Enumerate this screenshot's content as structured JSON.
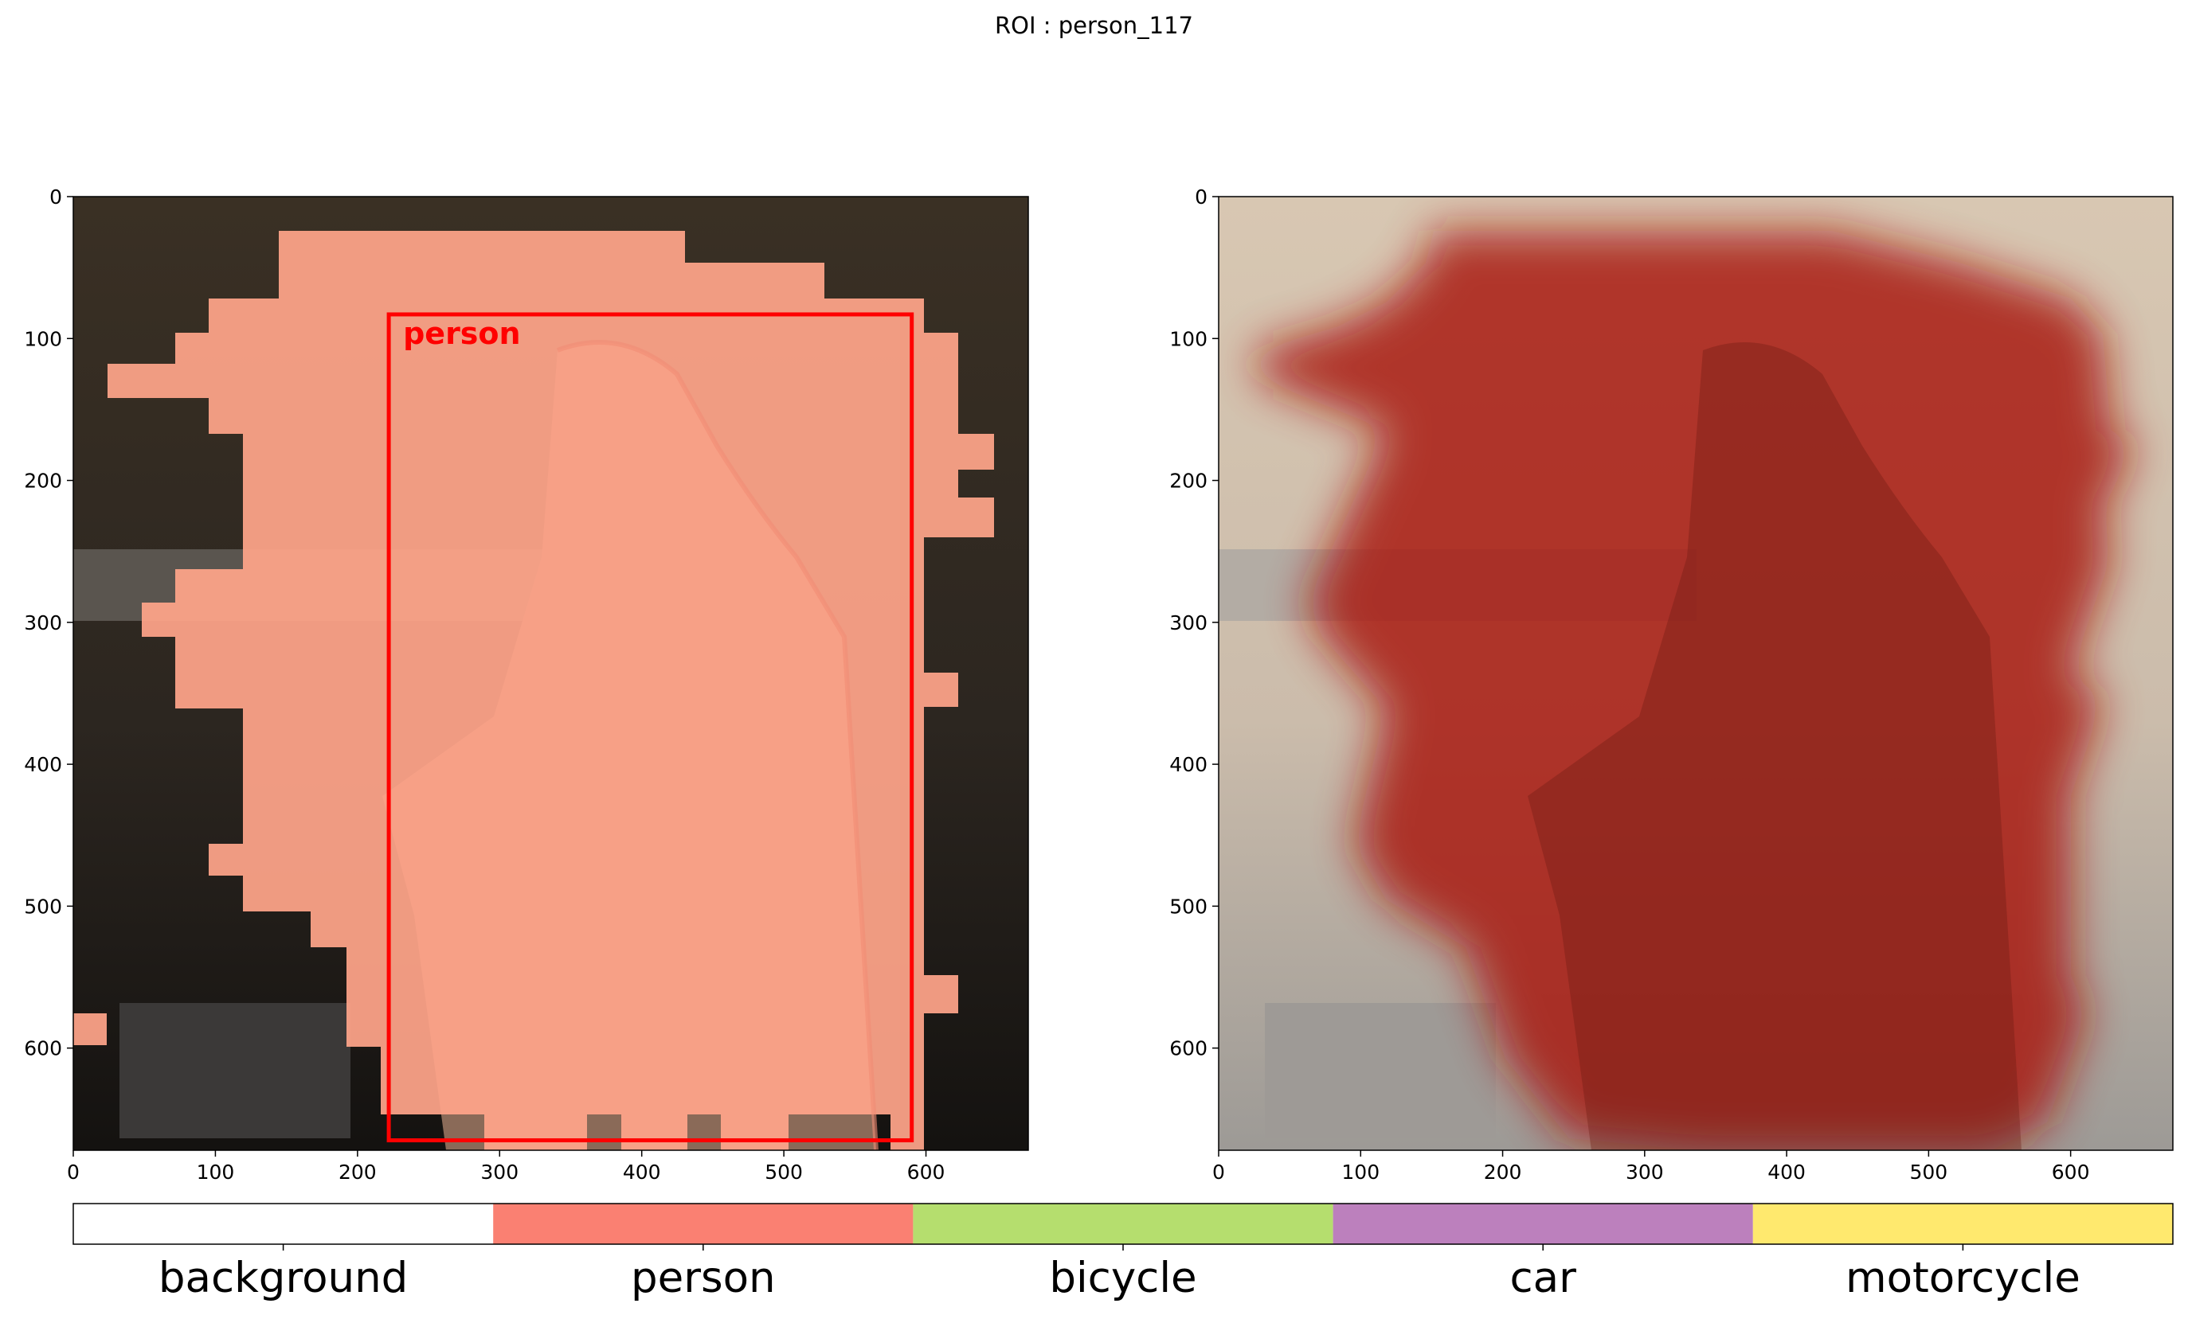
{
  "title": "ROI : person_117",
  "panels": [
    {
      "name": "segmentation-overlay",
      "box_label": "person",
      "box_color": "#ff0000",
      "overlay_color": "#ffa07a"
    },
    {
      "name": "heatmap-overlay",
      "heat_color": "#a8160c"
    }
  ],
  "axes": {
    "x_ticks": [
      0,
      100,
      200,
      300,
      400,
      500,
      600
    ],
    "y_ticks": [
      0,
      100,
      200,
      300,
      400,
      500,
      600
    ],
    "x_range": [
      0,
      672
    ],
    "y_range": [
      672,
      0
    ]
  },
  "legend": {
    "classes": [
      {
        "label": "background",
        "color": "#ffffff"
      },
      {
        "label": "person",
        "color": "#fa8072"
      },
      {
        "label": "bicycle",
        "color": "#b5de6e"
      },
      {
        "label": "car",
        "color": "#bc80bd"
      },
      {
        "label": "motorcycle",
        "color": "#ffe96e"
      }
    ]
  },
  "roi_box": {
    "x0": 222,
    "y0": 83,
    "x1": 590,
    "y1": 665
  }
}
